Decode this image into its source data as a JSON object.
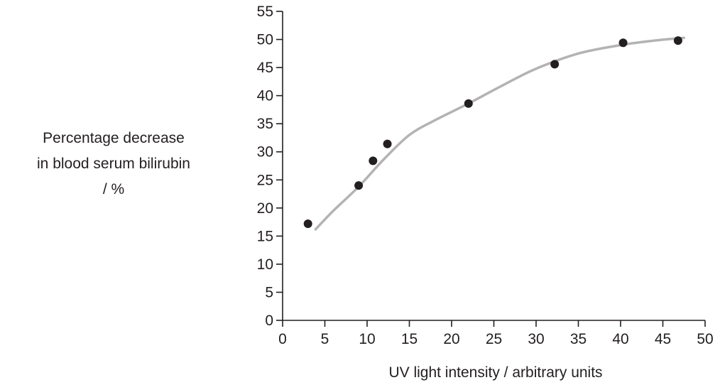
{
  "chart_data": {
    "type": "scatter",
    "xlabel": "UV light intensity / arbitrary units",
    "ylabel_lines": [
      "Percentage decrease",
      "in blood serum bilirubin",
      "/ %"
    ],
    "xlim": [
      0,
      50
    ],
    "ylim": [
      0,
      55
    ],
    "x_ticks": [
      "0",
      "5",
      "10",
      "15",
      "20",
      "25",
      "30",
      "35",
      "40",
      "45",
      "50"
    ],
    "y_ticks": [
      "0",
      "5",
      "10",
      "15",
      "20",
      "25",
      "30",
      "35",
      "40",
      "45",
      "50",
      "55"
    ],
    "grid": false,
    "legend": "none",
    "points": [
      {
        "x": 3,
        "y": 17.2
      },
      {
        "x": 9,
        "y": 24
      },
      {
        "x": 10.7,
        "y": 28.4
      },
      {
        "x": 12.4,
        "y": 31.4
      },
      {
        "x": 22,
        "y": 38.6
      },
      {
        "x": 32.2,
        "y": 45.6
      },
      {
        "x": 40.3,
        "y": 49.4
      },
      {
        "x": 46.8,
        "y": 49.8
      }
    ],
    "trend_curve": [
      {
        "x": 3.9,
        "y": 16.2
      },
      {
        "x": 6,
        "y": 19.5
      },
      {
        "x": 9,
        "y": 23.8
      },
      {
        "x": 12,
        "y": 28.7
      },
      {
        "x": 15,
        "y": 33.0
      },
      {
        "x": 18,
        "y": 35.6
      },
      {
        "x": 22,
        "y": 38.6
      },
      {
        "x": 26,
        "y": 41.8
      },
      {
        "x": 30,
        "y": 44.8
      },
      {
        "x": 35,
        "y": 47.5
      },
      {
        "x": 40,
        "y": 49.0
      },
      {
        "x": 44,
        "y": 49.8
      },
      {
        "x": 47.5,
        "y": 50.3
      }
    ],
    "colors": {
      "points": "#231f20",
      "curve": "#b3b3b3",
      "axis": "#231f20"
    }
  }
}
